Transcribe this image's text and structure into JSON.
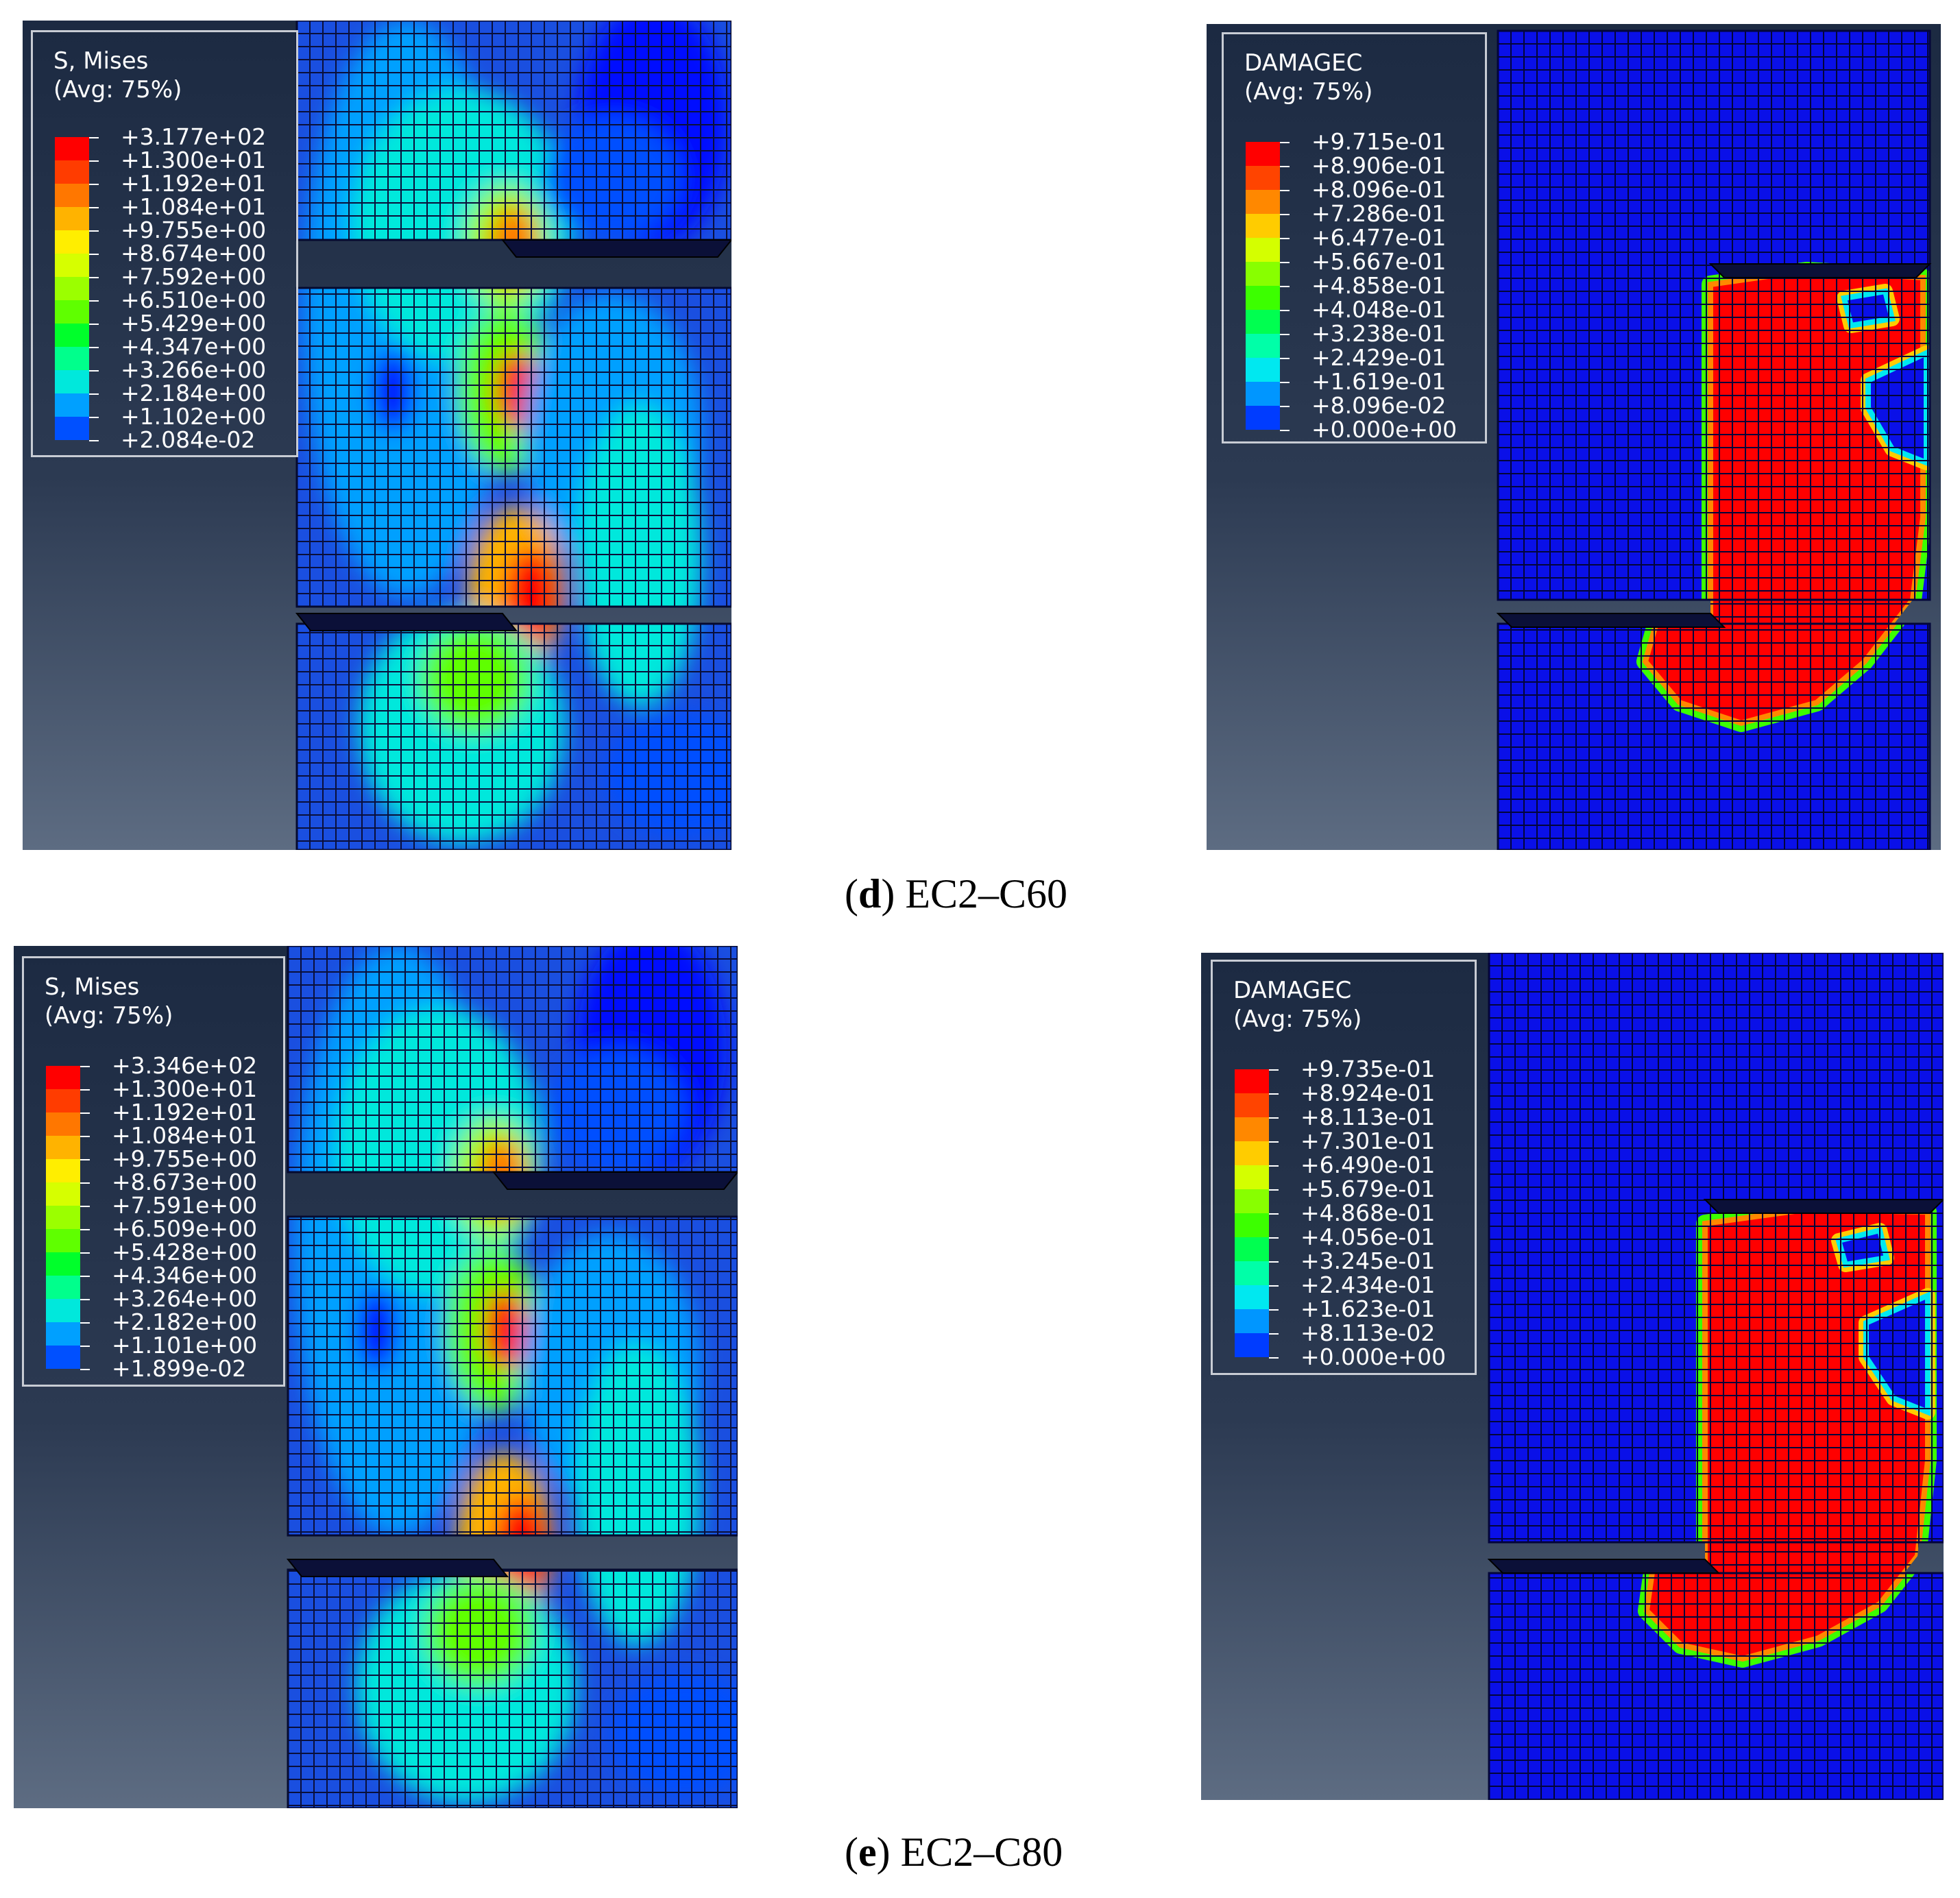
{
  "panels": [
    {
      "id": "d-stress",
      "legend_title": "S, Mises",
      "legend_subtitle": "(Avg: 75%)",
      "legend_values": [
        "+3.177e+02",
        "+1.300e+01",
        "+1.192e+01",
        "+1.084e+01",
        "+9.755e+00",
        "+8.674e+00",
        "+7.592e+00",
        "+6.510e+00",
        "+5.429e+00",
        "+4.347e+00",
        "+3.266e+00",
        "+2.184e+00",
        "+1.102e+00",
        "+2.084e-02"
      ]
    },
    {
      "id": "d-damage",
      "legend_title": "DAMAGEC",
      "legend_subtitle": "(Avg: 75%)",
      "legend_values": [
        "+9.715e-01",
        "+8.906e-01",
        "+8.096e-01",
        "+7.286e-01",
        "+6.477e-01",
        "+5.667e-01",
        "+4.858e-01",
        "+4.048e-01",
        "+3.238e-01",
        "+2.429e-01",
        "+1.619e-01",
        "+8.096e-02",
        "+0.000e+00"
      ]
    },
    {
      "id": "e-stress",
      "legend_title": "S, Mises",
      "legend_subtitle": "(Avg: 75%)",
      "legend_values": [
        "+3.346e+02",
        "+1.300e+01",
        "+1.192e+01",
        "+1.084e+01",
        "+9.755e+00",
        "+8.673e+00",
        "+7.591e+00",
        "+6.509e+00",
        "+5.428e+00",
        "+4.346e+00",
        "+3.264e+00",
        "+2.182e+00",
        "+1.101e+00",
        "+1.899e-02"
      ]
    },
    {
      "id": "e-damage",
      "legend_title": "DAMAGEC",
      "legend_subtitle": "(Avg: 75%)",
      "legend_values": [
        "+9.735e-01",
        "+8.924e-01",
        "+8.113e-01",
        "+7.301e-01",
        "+6.490e-01",
        "+5.679e-01",
        "+4.868e-01",
        "+4.056e-01",
        "+3.245e-01",
        "+2.434e-01",
        "+1.623e-01",
        "+8.113e-02",
        "+0.000e+00"
      ]
    }
  ],
  "captions": {
    "d_letter": "d",
    "d_text": " EC2–C60",
    "e_letter": "e",
    "e_text": " EC2–C80"
  },
  "colors": {
    "background_top": "#1c2a42",
    "background_bottom": "#5d6c82",
    "stress_scale": [
      "#ff0000",
      "#ff3c00",
      "#ff7700",
      "#ffb300",
      "#ffee00",
      "#d6ff00",
      "#9bff00",
      "#5fff00",
      "#00ff2b",
      "#00ff8c",
      "#00e8dc",
      "#00a0ff",
      "#0050ff",
      "#0008ff"
    ],
    "damage_scale": [
      "#ff0000",
      "#ff4400",
      "#ff8800",
      "#ffcc00",
      "#d4ff00",
      "#88ff00",
      "#3cff00",
      "#00ff50",
      "#00ffa8",
      "#00e8f0",
      "#0096ff",
      "#003cff",
      "#0000ff"
    ],
    "mesh_blue": "#0a1cd8"
  }
}
